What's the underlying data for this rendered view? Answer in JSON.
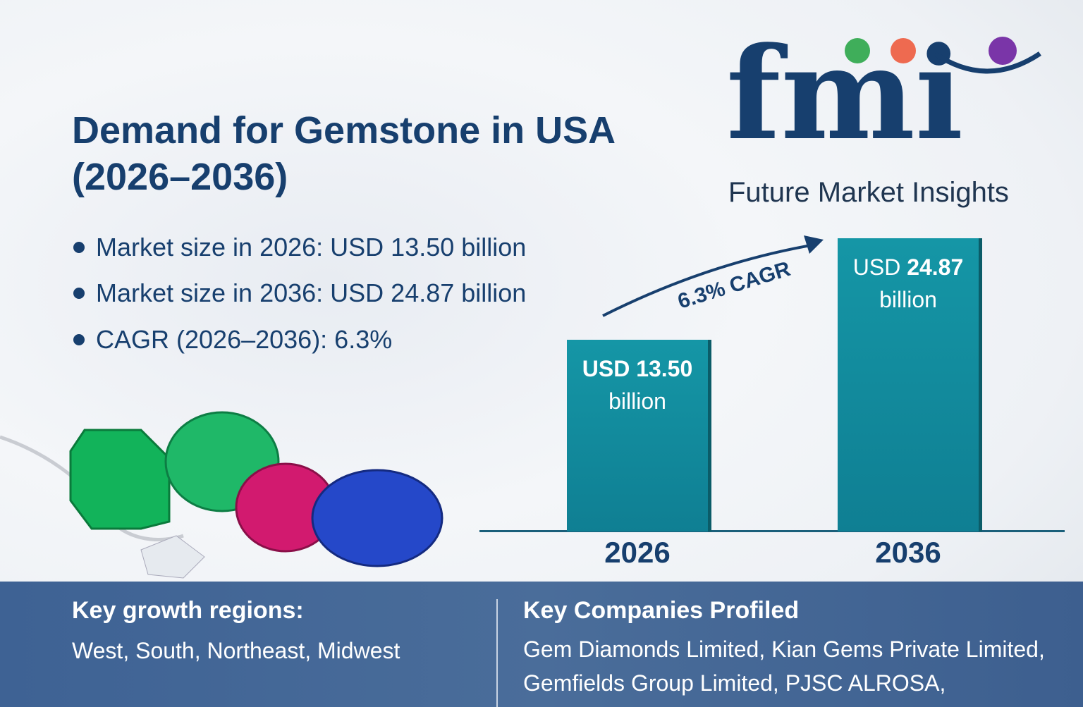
{
  "title_line1": "Demand for Gemstone in USA",
  "title_line2": "(2026–2036)",
  "bullets": [
    "Market size in 2026: USD 13.50 billion",
    "Market size in 2036: USD 24.87 billion",
    "CAGR (2026–2036): 6.3%"
  ],
  "logo": {
    "text": "fmi",
    "subtitle": "Future Market Insights",
    "dot_colors": [
      "#3fae5a",
      "#ee6a50",
      "#7a35a8"
    ]
  },
  "chart_data": {
    "type": "bar",
    "categories": [
      "2026",
      "2036"
    ],
    "values": [
      13.5,
      24.87
    ],
    "unit": "USD billion",
    "labels": [
      {
        "prefix": "USD",
        "value": "13.50",
        "suffix": "billion"
      },
      {
        "prefix": "USD",
        "value": "24.87",
        "suffix": "billion"
      }
    ],
    "annotation": "6.3% CAGR",
    "bar_color": "#138b9d"
  },
  "footer": {
    "regions_heading": "Key growth regions:",
    "regions": "West, South, Northeast, Midwest",
    "companies_heading": "Key Companies Profiled",
    "companies_line1": "Gem Diamonds Limited, Kian Gems Private Limited,",
    "companies_line2": "Gemfields Group Limited, PJSC ALROSA,"
  }
}
